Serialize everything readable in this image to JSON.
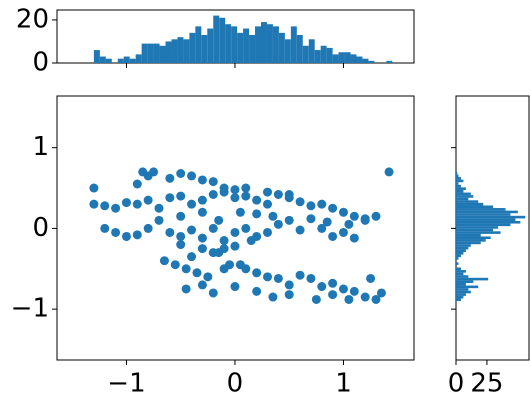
{
  "chart_data": [
    {
      "type": "scatter",
      "color": "#1f77b4",
      "xlim": [
        -1.64,
        1.65
      ],
      "ylim": [
        -1.63,
        1.64
      ],
      "xticks": [
        {
          "value": -1,
          "label": "−1"
        },
        0,
        1
      ],
      "yticks": [
        {
          "value": -1,
          "label": "−1"
        },
        0,
        1
      ],
      "x": [
        -1.3,
        -1.2,
        -1.1,
        -1.0,
        -0.9,
        -0.8,
        -0.7,
        -0.6,
        -0.5,
        -0.4,
        -0.3,
        -0.2,
        -0.1,
        0.0,
        0.1,
        0.2,
        0.3,
        0.4,
        0.5,
        0.6,
        0.7,
        0.8,
        0.9,
        1.0,
        1.1,
        1.2,
        1.3,
        -1.3,
        -0.9,
        -0.85,
        -0.8,
        -0.75,
        -0.6,
        -0.5,
        -0.4,
        -0.3,
        -0.2,
        -0.1,
        0.0,
        0.1,
        0.3,
        0.5,
        1.42,
        -1.2,
        -1.1,
        -1.0,
        -0.9,
        -0.8,
        -0.6,
        -0.5,
        -0.4,
        -0.3,
        -0.2,
        -0.1,
        0.0,
        0.1,
        0.2,
        0.4,
        0.6,
        0.8,
        0.9,
        1.0,
        1.1,
        1.2,
        -0.7,
        -0.5,
        -0.3,
        -0.15,
        0.05,
        0.2,
        0.35,
        0.5,
        0.7,
        0.85,
        1.05,
        -0.65,
        -0.55,
        -0.45,
        -0.4,
        -0.35,
        -0.25,
        -0.15,
        -0.1,
        -0.05,
        0.05,
        0.1,
        0.2,
        0.3,
        0.4,
        0.5,
        0.6,
        0.7,
        0.8,
        0.9,
        1.0,
        1.1,
        -0.45,
        -0.3,
        -0.2,
        0.0,
        0.2,
        0.35,
        0.5,
        0.75,
        0.9,
        1.05,
        1.2,
        1.25,
        1.3,
        1.35,
        -0.5,
        -0.3,
        -0.2,
        0.0,
        0.15,
        0.3,
        -0.1
      ],
      "y": [
        0.3,
        0.28,
        0.25,
        0.32,
        0.3,
        0.35,
        0.25,
        0.38,
        0.4,
        0.3,
        0.35,
        0.42,
        0.45,
        0.38,
        0.4,
        0.35,
        0.3,
        0.42,
        0.38,
        0.33,
        0.28,
        0.3,
        0.25,
        0.2,
        0.15,
        0.12,
        0.15,
        0.5,
        0.55,
        0.7,
        0.65,
        0.7,
        0.62,
        0.68,
        0.65,
        0.6,
        0.58,
        0.5,
        0.48,
        0.5,
        0.45,
        0.42,
        0.7,
        0.0,
        -0.05,
        -0.1,
        -0.08,
        0.0,
        -0.05,
        -0.1,
        -0.02,
        -0.12,
        0.0,
        -0.15,
        -0.05,
        0.0,
        -0.1,
        0.05,
        -0.02,
        0.0,
        -0.1,
        -0.05,
        -0.12,
        0.1,
        0.1,
        0.15,
        0.2,
        0.1,
        0.2,
        0.18,
        0.15,
        0.1,
        0.12,
        0.08,
        0.05,
        -0.4,
        -0.45,
        -0.5,
        -0.35,
        -0.55,
        -0.6,
        -0.3,
        -0.5,
        -0.45,
        -0.45,
        -0.5,
        -0.55,
        -0.6,
        -0.62,
        -0.7,
        -0.58,
        -0.62,
        -0.72,
        -0.68,
        -0.75,
        -0.78,
        -0.75,
        -0.7,
        -0.8,
        -0.72,
        -0.78,
        -0.85,
        -0.82,
        -0.88,
        -0.82,
        -0.88,
        -0.85,
        -0.62,
        -0.88,
        -0.8,
        -0.2,
        -0.25,
        -0.3,
        -0.22,
        -0.15,
        -0.05,
        -0.25
      ]
    },
    {
      "type": "histogram",
      "orientation": "vertical",
      "color": "#1f77b4",
      "xlim": [
        -1.64,
        1.65
      ],
      "ylim": [
        0,
        24.6
      ],
      "yticks": [
        0,
        20
      ],
      "bins": [
        -1.3,
        -1.245,
        -1.19,
        -1.135,
        -1.08,
        -1.025,
        -0.97,
        -0.915,
        -0.86,
        -0.805,
        -0.75,
        -0.695,
        -0.64,
        -0.585,
        -0.53,
        -0.475,
        -0.42,
        -0.365,
        -0.31,
        -0.255,
        -0.2,
        -0.145,
        -0.09,
        -0.035,
        0.02,
        0.075,
        0.13,
        0.185,
        0.24,
        0.295,
        0.35,
        0.405,
        0.46,
        0.515,
        0.57,
        0.625,
        0.68,
        0.735,
        0.79,
        0.845,
        0.9,
        0.955,
        1.01,
        1.065,
        1.12,
        1.175,
        1.23,
        1.285,
        1.34,
        1.395,
        1.45
      ],
      "values": [
        6,
        3,
        2,
        0,
        2,
        3,
        2,
        4,
        9,
        9,
        9,
        8,
        10,
        11,
        12,
        11,
        14,
        17,
        13,
        16,
        22,
        21,
        18,
        17,
        14,
        16,
        13,
        17,
        19,
        18,
        17,
        14,
        11,
        17,
        13,
        8,
        11,
        6,
        8,
        7,
        4,
        5,
        5,
        4,
        3,
        2,
        1,
        0,
        0,
        1
      ]
    },
    {
      "type": "histogram",
      "orientation": "horizontal",
      "color": "#1f77b4",
      "xlim": [
        0,
        59
      ],
      "ylim": [
        -1.63,
        1.64
      ],
      "xticks": [
        0,
        25
      ],
      "bins": [
        -0.9,
        -0.868,
        -0.836,
        -0.804,
        -0.772,
        -0.74,
        -0.708,
        -0.676,
        -0.644,
        -0.612,
        -0.58,
        -0.548,
        -0.516,
        -0.484,
        -0.452,
        -0.42,
        -0.388,
        -0.356,
        -0.324,
        -0.292,
        -0.26,
        -0.228,
        -0.196,
        -0.164,
        -0.132,
        -0.1,
        -0.068,
        -0.036,
        -0.004,
        0.028,
        0.06,
        0.092,
        0.124,
        0.156,
        0.188,
        0.22,
        0.252,
        0.284,
        0.316,
        0.348,
        0.38,
        0.412,
        0.444,
        0.476,
        0.508,
        0.54,
        0.572,
        0.604,
        0.636,
        0.668,
        0.7
      ],
      "values": [
        4,
        6,
        8,
        12,
        10,
        18,
        8,
        14,
        26,
        10,
        6,
        8,
        4,
        0,
        2,
        0,
        2,
        4,
        6,
        8,
        10,
        12,
        20,
        24,
        28,
        20,
        36,
        30,
        34,
        44,
        52,
        48,
        56,
        44,
        50,
        40,
        30,
        22,
        18,
        10,
        14,
        12,
        6,
        8,
        4,
        2,
        6,
        4,
        2,
        1
      ]
    }
  ]
}
